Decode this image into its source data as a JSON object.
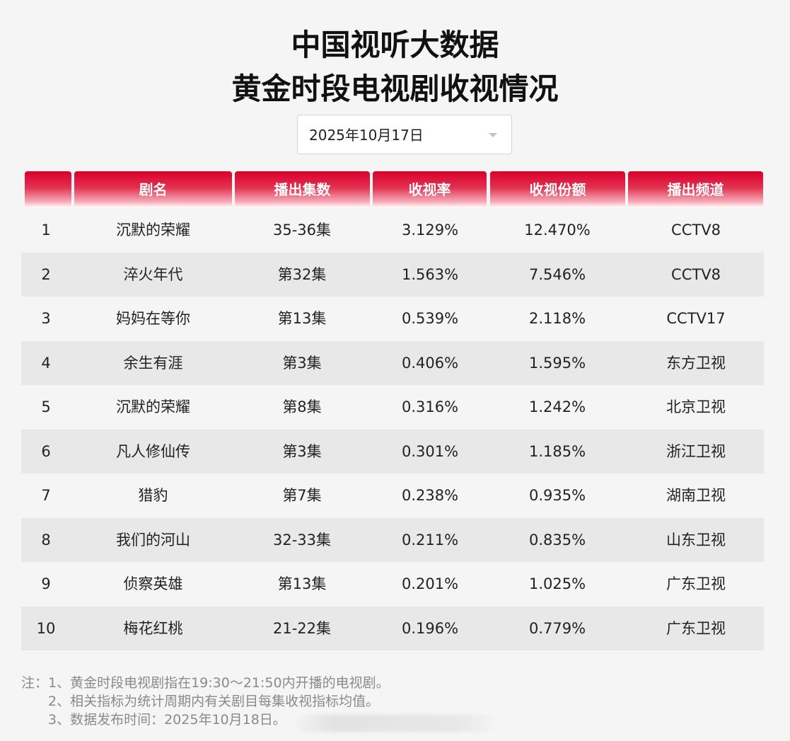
{
  "title_line1": "中国视听大数据",
  "title_line2": "黄金时段电视剧收视情况",
  "date_select": {
    "value": "2025年10月17日",
    "icon": "chevron-down-icon"
  },
  "colors": {
    "header_red": "#d9002a",
    "row_shade": "#e8e8e8",
    "background": "#f5f5f5",
    "note_text": "#8a8a8a"
  },
  "table": {
    "headers": [
      "",
      "剧名",
      "播出集数",
      "收视率",
      "收视份额",
      "播出频道"
    ],
    "rows": [
      {
        "rank": "1",
        "name": "沉默的荣耀",
        "episodes": "35-36集",
        "rating": "3.129%",
        "share": "12.470%",
        "channel": "CCTV8"
      },
      {
        "rank": "2",
        "name": "淬火年代",
        "episodes": "第32集",
        "rating": "1.563%",
        "share": "7.546%",
        "channel": "CCTV8"
      },
      {
        "rank": "3",
        "name": "妈妈在等你",
        "episodes": "第13集",
        "rating": "0.539%",
        "share": "2.118%",
        "channel": "CCTV17"
      },
      {
        "rank": "4",
        "name": "余生有涯",
        "episodes": "第3集",
        "rating": "0.406%",
        "share": "1.595%",
        "channel": "东方卫视"
      },
      {
        "rank": "5",
        "name": "沉默的荣耀",
        "episodes": "第8集",
        "rating": "0.316%",
        "share": "1.242%",
        "channel": "北京卫视"
      },
      {
        "rank": "6",
        "name": "凡人修仙传",
        "episodes": "第3集",
        "rating": "0.301%",
        "share": "1.185%",
        "channel": "浙江卫视"
      },
      {
        "rank": "7",
        "name": "猎豹",
        "episodes": "第7集",
        "rating": "0.238%",
        "share": "0.935%",
        "channel": "湖南卫视"
      },
      {
        "rank": "8",
        "name": "我们的河山",
        "episodes": "32-33集",
        "rating": "0.211%",
        "share": "0.835%",
        "channel": "山东卫视"
      },
      {
        "rank": "9",
        "name": "侦察英雄",
        "episodes": "第13集",
        "rating": "0.201%",
        "share": "1.025%",
        "channel": "广东卫视"
      },
      {
        "rank": "10",
        "name": "梅花红桃",
        "episodes": "21-22集",
        "rating": "0.196%",
        "share": "0.779%",
        "channel": "广东卫视"
      }
    ]
  },
  "notes": [
    "注：1、黄金时段电视剧指在19:30～21:50内开播的电视剧。",
    "2、相关指标为统计周期内有关剧目每集收视指标均值。",
    "3、数据发布时间：2025年10月18日。"
  ]
}
